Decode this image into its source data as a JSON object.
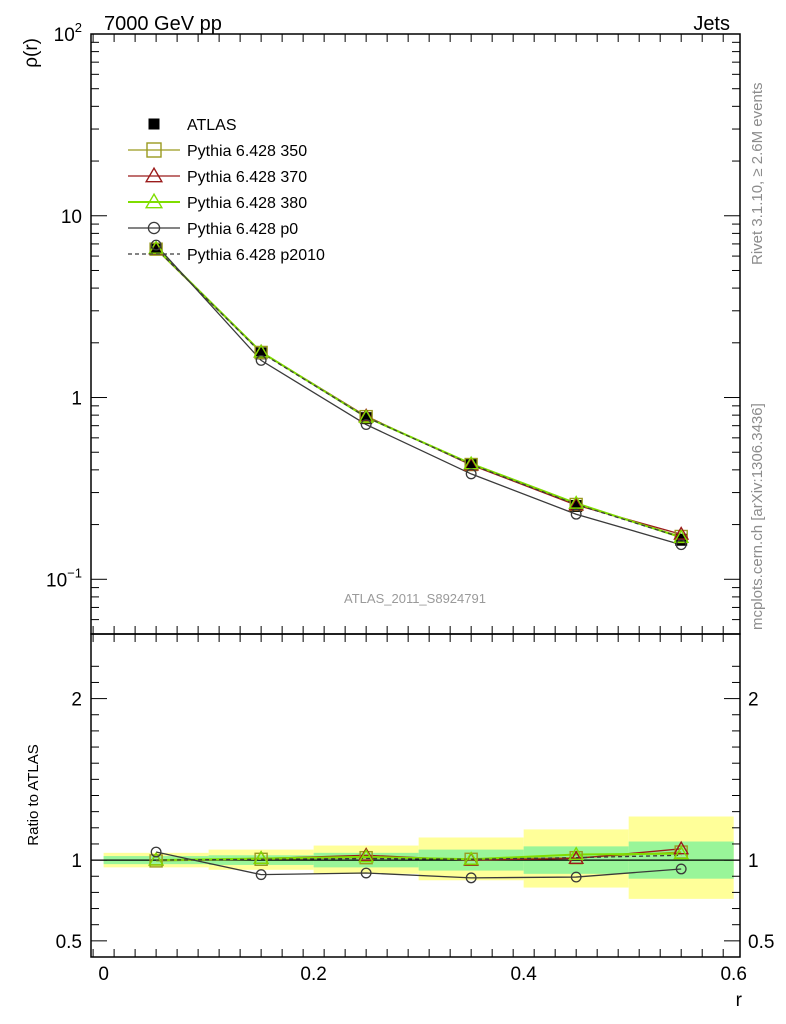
{
  "header": {
    "left": "7000 GeV pp",
    "right": "Jets"
  },
  "side_text": {
    "upper": "Rivet 3.1.10, ≥ 2.6M events",
    "lower": "mcplots.cern.ch [arXiv:1306.3436]"
  },
  "watermark": "ATLAS_2011_S8924791",
  "chart_data": [
    {
      "type": "line",
      "panel": "main",
      "ylabel": "ρ(r)",
      "xlabel": "",
      "yscale": "log",
      "ylim": [
        0.05,
        100
      ],
      "xlim": [
        -0.012,
        0.606
      ],
      "ytick_labels": [
        {
          "value": 0.1,
          "base": "10",
          "exp": "−1"
        },
        {
          "value": 1,
          "base": "1",
          "exp": ""
        },
        {
          "value": 10,
          "base": "10",
          "exp": ""
        },
        {
          "value": 100,
          "base": "10",
          "exp": "2"
        }
      ],
      "x": [
        0.05,
        0.15,
        0.25,
        0.35,
        0.45,
        0.55
      ],
      "legend": {
        "placement": "top-left"
      },
      "series": [
        {
          "name": "ATLAS",
          "color": "#000000",
          "marker": "filled-square",
          "line": "none",
          "values": [
            6.6,
            1.75,
            0.77,
            0.425,
            0.253,
            0.165
          ]
        },
        {
          "name": "Pythia 6.428 350",
          "color": "#9a9a1f",
          "marker": "open-square",
          "line": "solid",
          "values": [
            6.55,
            1.77,
            0.785,
            0.428,
            0.258,
            0.172
          ]
        },
        {
          "name": "Pythia 6.428 370",
          "color": "#9b1b1b",
          "marker": "open-triangle",
          "line": "solid",
          "values": [
            6.58,
            1.78,
            0.79,
            0.425,
            0.256,
            0.177
          ]
        },
        {
          "name": "Pythia 6.428 380",
          "color": "#7fdd00",
          "marker": "open-triangle",
          "line": "solid",
          "values": [
            6.62,
            1.78,
            0.78,
            0.432,
            0.262,
            0.17
          ]
        },
        {
          "name": "Pythia 6.428 p0",
          "color": "#3a3a3a",
          "marker": "open-circle",
          "line": "solid",
          "values": [
            6.9,
            1.6,
            0.71,
            0.38,
            0.228,
            0.155
          ]
        },
        {
          "name": "Pythia 6.428 p2010",
          "color": "#3a3a3a",
          "marker": "none",
          "line": "dashed",
          "values": [
            6.6,
            1.76,
            0.78,
            0.428,
            0.258,
            0.17
          ]
        }
      ]
    },
    {
      "type": "line",
      "panel": "ratio",
      "ylabel": "Ratio to ATLAS",
      "xlabel": "r",
      "ylim": [
        0.4,
        2.4
      ],
      "xlim": [
        -0.012,
        0.606
      ],
      "yticks": [
        0.5,
        1,
        2
      ],
      "ytick_labels": [
        "0.5",
        "1",
        "2"
      ],
      "xticks": [
        0,
        0.2,
        0.4,
        0.6
      ],
      "xtick_labels": [
        "0",
        "0.2",
        "0.4",
        "0.6"
      ],
      "bands": {
        "edges": [
          0,
          0.1,
          0.2,
          0.3,
          0.4,
          0.5,
          0.6
        ],
        "green_lo": [
          0.975,
          0.97,
          0.955,
          0.935,
          0.915,
          0.885
        ],
        "green_hi": [
          1.025,
          1.03,
          1.045,
          1.065,
          1.085,
          1.115
        ],
        "yellow_lo": [
          0.955,
          0.94,
          0.915,
          0.875,
          0.83,
          0.76
        ],
        "yellow_hi": [
          1.045,
          1.065,
          1.09,
          1.14,
          1.19,
          1.27
        ],
        "green_color": "#99f599",
        "yellow_color": "#ffff99"
      },
      "x": [
        0.05,
        0.15,
        0.25,
        0.35,
        0.45,
        0.55
      ],
      "series": [
        {
          "name": "Pythia 6.428 350",
          "color": "#9a9a1f",
          "marker": "open-square",
          "line": "solid",
          "values": [
            0.995,
            1.005,
            1.015,
            1.005,
            1.015,
            1.05
          ]
        },
        {
          "name": "Pythia 6.428 370",
          "color": "#9b1b1b",
          "marker": "open-triangle",
          "line": "solid",
          "values": [
            1.0,
            1.01,
            1.03,
            1.0,
            1.01,
            1.07
          ]
        },
        {
          "name": "Pythia 6.428 380",
          "color": "#7fdd00",
          "marker": "open-triangle",
          "line": "solid",
          "values": [
            1.0,
            1.01,
            1.02,
            1.005,
            1.035,
            1.04
          ]
        },
        {
          "name": "Pythia 6.428 p0",
          "color": "#3a3a3a",
          "marker": "open-circle",
          "line": "solid",
          "values": [
            1.05,
            0.91,
            0.92,
            0.89,
            0.895,
            0.945
          ]
        },
        {
          "name": "Pythia 6.428 p2010",
          "color": "#3a3a3a",
          "marker": "none",
          "line": "dashed",
          "values": [
            1.0,
            1.005,
            1.01,
            1.005,
            1.015,
            1.03
          ]
        }
      ]
    }
  ]
}
